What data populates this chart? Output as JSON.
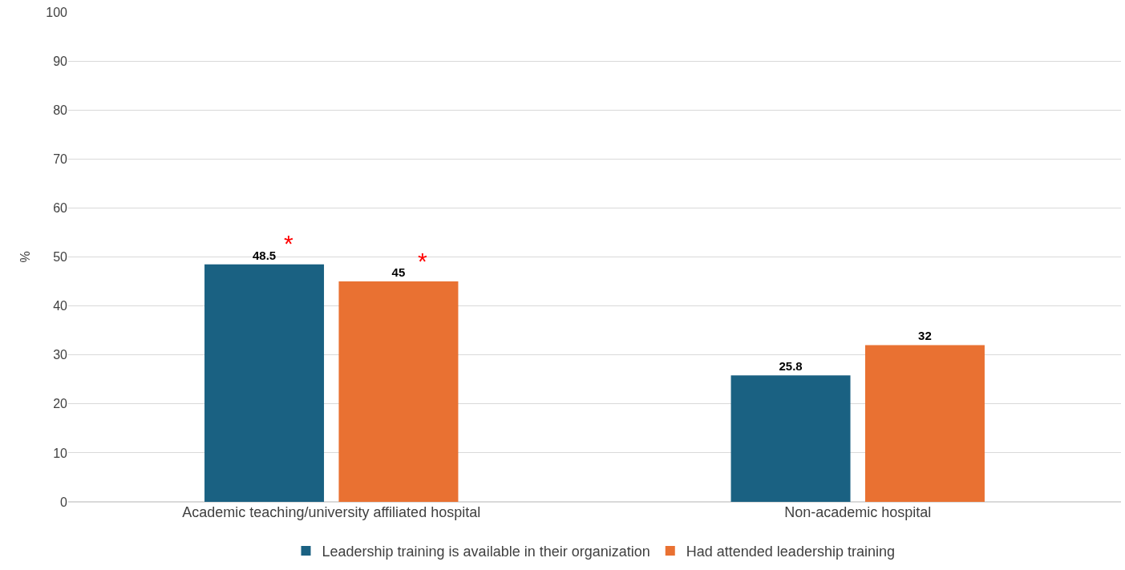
{
  "chart_data": {
    "type": "bar",
    "ylabel": "%",
    "categories": [
      "Academic teaching/university affiliated hospital",
      "Non-academic hospital"
    ],
    "series": [
      {
        "name": "Leadership training is available in their organization",
        "color": "#1a6182",
        "values": [
          48.5,
          25.8
        ]
      },
      {
        "name": "Had attended leadership training",
        "color": "#e97132",
        "values": [
          45,
          32
        ]
      }
    ],
    "ylim": [
      0,
      100
    ],
    "yticks": [
      0,
      10,
      20,
      30,
      40,
      50,
      60,
      70,
      80,
      90,
      100
    ],
    "grid": "y",
    "legend": "bottom",
    "data_labels": true,
    "annotations": [
      "*",
      "*"
    ]
  }
}
